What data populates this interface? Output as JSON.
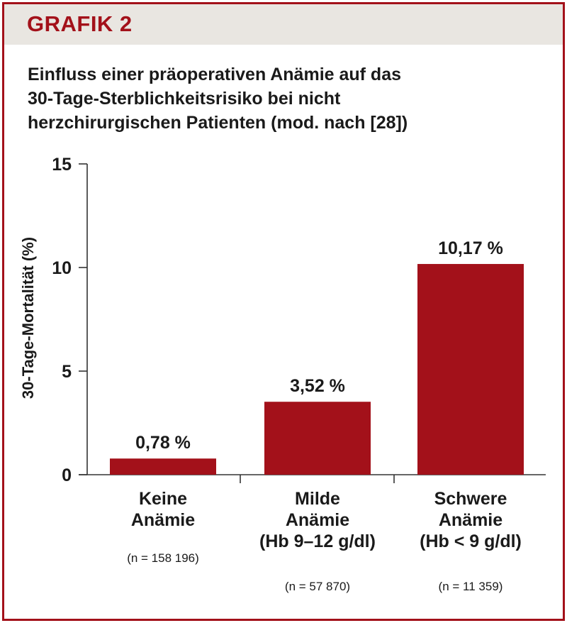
{
  "header": {
    "label": "GRAFIK 2"
  },
  "title_lines": [
    "Einfluss einer präoperativen Anämie auf das",
    "30-Tage-Sterblichkeitsrisiko bei nicht",
    "herzchirurgischen Patienten (mod. nach [28])"
  ],
  "colors": {
    "accent": "#a3111a",
    "header_bg": "#e9e6e1"
  },
  "chart_data": {
    "type": "bar",
    "title": "Einfluss einer präoperativen Anämie auf das 30-Tage-Sterblichkeitsrisiko bei nicht herzchirurgischen Patienten (mod. nach [28])",
    "xlabel": "",
    "ylabel": "30-Tage-Mortalität (%)",
    "ylim": [
      0,
      15
    ],
    "yticks": [
      0,
      5,
      10,
      15
    ],
    "grid": false,
    "categories": [
      {
        "lines": [
          "Keine",
          "Anämie"
        ],
        "n": "(n = 158 196)"
      },
      {
        "lines": [
          "Milde",
          "Anämie",
          "(Hb 9–12 g/dl)"
        ],
        "n": "(n = 57 870)"
      },
      {
        "lines": [
          "Schwere",
          "Anämie",
          "(Hb < 9 g/dl)"
        ],
        "n": "(n = 11 359)"
      }
    ],
    "values": [
      0.78,
      3.52,
      10.17
    ],
    "value_labels": [
      "0,78 %",
      "3,52 %",
      "10,17 %"
    ]
  }
}
